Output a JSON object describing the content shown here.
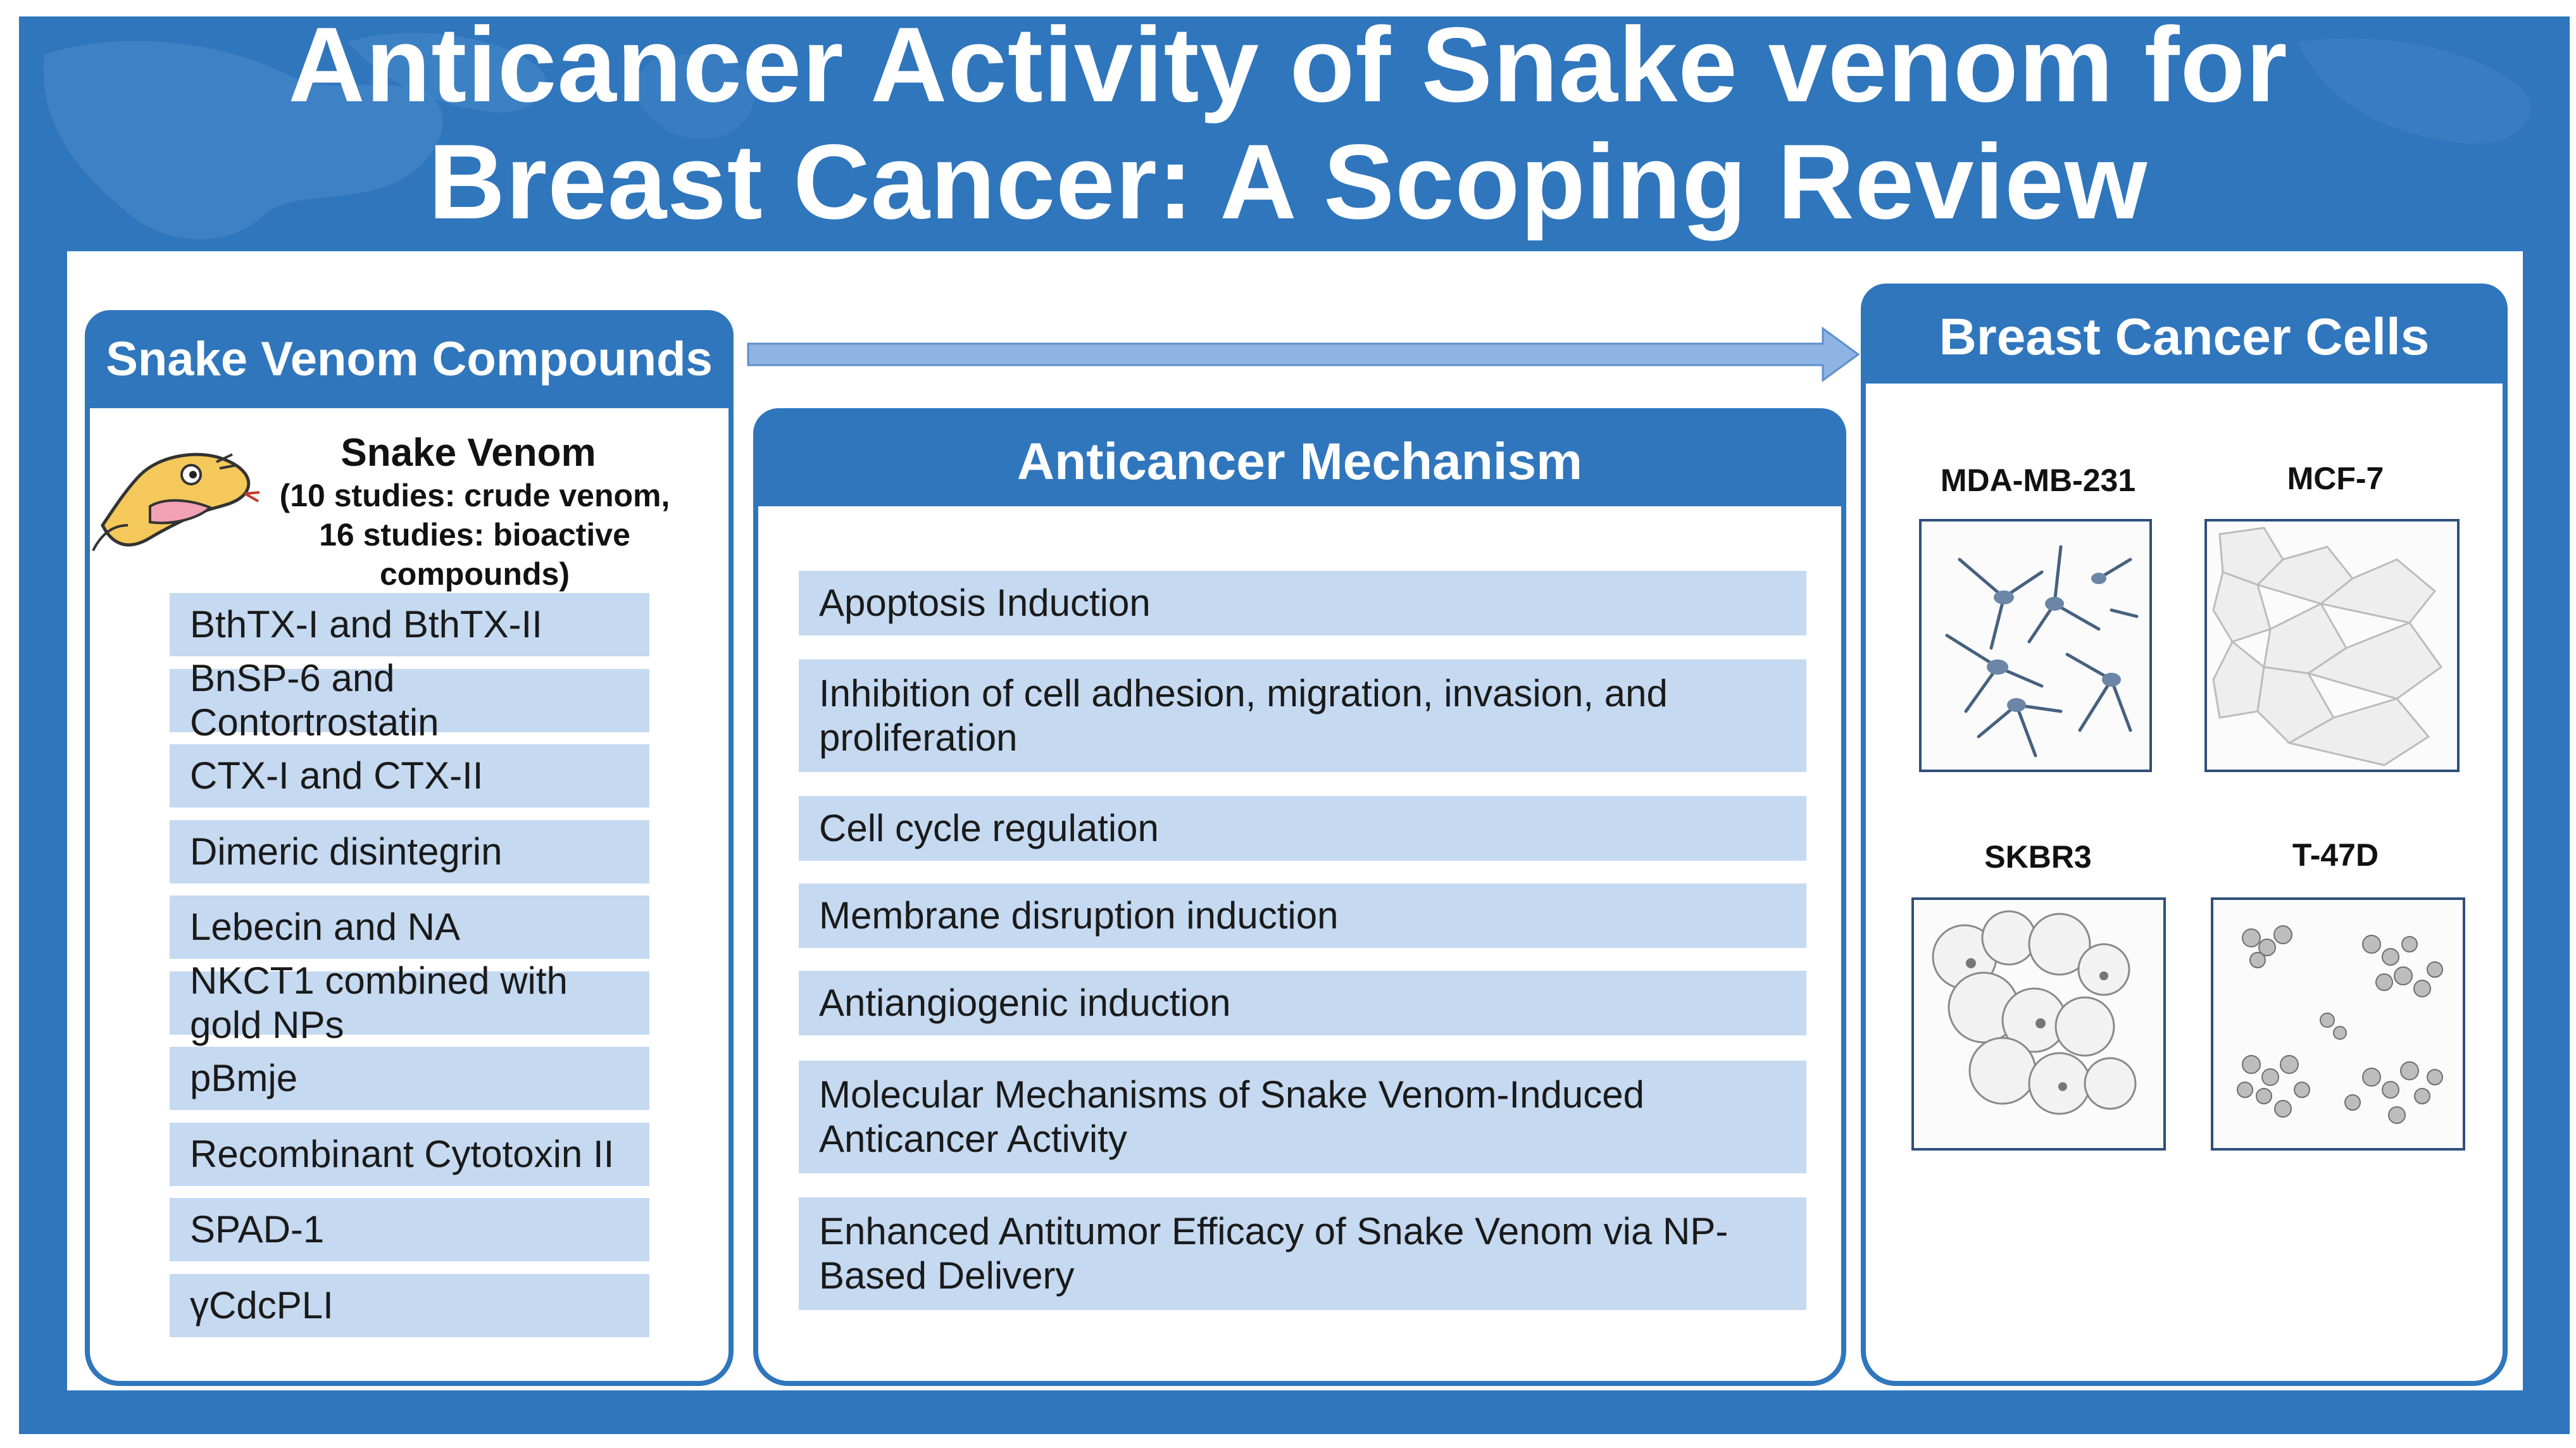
{
  "title": {
    "line1": "Anticancer Activity of Snake venom for",
    "line2": "Breast Cancer: A Scoping Review"
  },
  "compounds_panel": {
    "header": "Snake Venom Compounds",
    "venom_heading": "Snake Venom",
    "venom_line1": "(10 studies: crude venom,",
    "venom_line2": "16 studies: bioactive compounds)",
    "items": [
      "BthTX-I and BthTX-II",
      "BnSP-6 and Contortrostatin",
      "CTX-I and CTX-II",
      "Dimeric disintegrin",
      "Lebecin and NA",
      "NKCT1 combined with gold NPs",
      "pBmje",
      "Recombinant Cytotoxin II",
      "SPAD-1",
      "γCdcPLI"
    ]
  },
  "mechanism_panel": {
    "header": "Anticancer Mechanism",
    "items": [
      "Apoptosis Induction",
      "Inhibition of cell adhesion, migration, invasion, and proliferation",
      "Cell cycle regulation",
      "Membrane disruption induction",
      "Antiangiogenic induction",
      "Molecular Mechanisms of Snake Venom-Induced Anticancer Activity",
      "Enhanced Antitumor Efficacy of Snake Venom via NP-Based Delivery"
    ]
  },
  "cells_panel": {
    "header": "Breast Cancer Cells",
    "cells": [
      "MDA-MB-231",
      "MCF-7",
      "SKBR3",
      "T-47D"
    ]
  },
  "colors": {
    "brand_blue": "#2f76bd",
    "item_fill": "#c5d9f1",
    "arrow_fill": "#8db4e2"
  },
  "icons": {
    "snake": "snake-head-icon",
    "flow_arrow": "right-arrow-icon"
  }
}
